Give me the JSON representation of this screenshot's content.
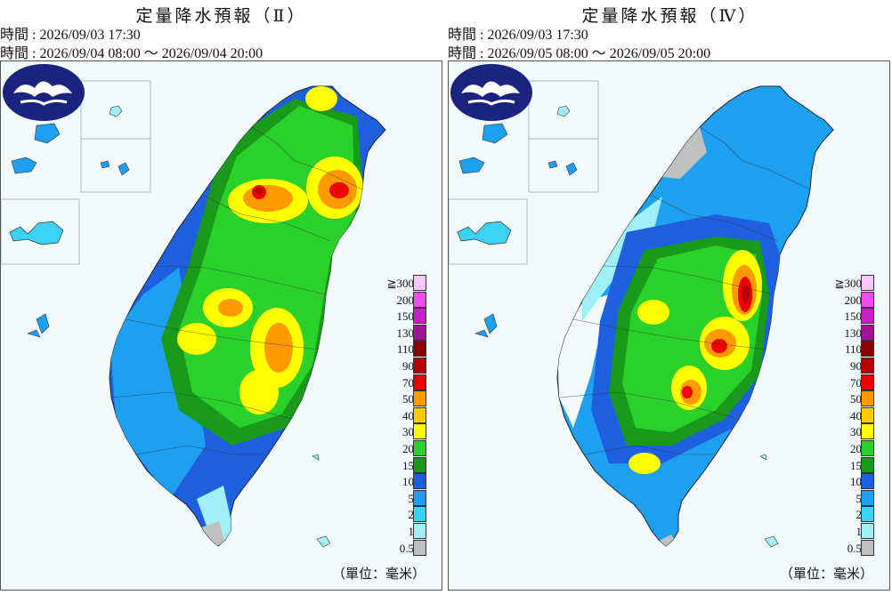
{
  "panels": [
    {
      "title": "定量降水預報（Ⅱ）",
      "issue_line": "時間 : 2026/09/03 17:30",
      "valid_line": "時間 : 2026/09/04 08:00 ～ 2026/09/04 20:00"
    },
    {
      "title": "定量降水預報（Ⅳ）",
      "issue_line": "時間 : 2026/09/03 17:30",
      "valid_line": "時間 : 2026/09/05 08:00 ～ 2026/09/05 20:00"
    }
  ],
  "legend": {
    "levels": [
      {
        "label": "≧300",
        "color": "#fbc7fb"
      },
      {
        "label": "200",
        "color": "#f04bf0"
      },
      {
        "label": "150",
        "color": "#c81ec8"
      },
      {
        "label": "130",
        "color": "#a01496"
      },
      {
        "label": "110",
        "color": "#8c0000"
      },
      {
        "label": "90",
        "color": "#b40000"
      },
      {
        "label": "70",
        "color": "#ee0000"
      },
      {
        "label": "50",
        "color": "#ff9900"
      },
      {
        "label": "40",
        "color": "#ffcc00"
      },
      {
        "label": "30",
        "color": "#ffff00"
      },
      {
        "label": "20",
        "color": "#2bd12b"
      },
      {
        "label": "15",
        "color": "#1a9a1a"
      },
      {
        "label": "10",
        "color": "#1e5fe0"
      },
      {
        "label": "5",
        "color": "#1ea0f0"
      },
      {
        "label": "2",
        "color": "#3cd2f5"
      },
      {
        "label": "1",
        "color": "#a0f0fa"
      },
      {
        "label": "0.5",
        "color": "#c0c0c0"
      }
    ],
    "unit": "（單位：毫米）"
  },
  "logo_icon": "cwa-cloud-logo-icon"
}
